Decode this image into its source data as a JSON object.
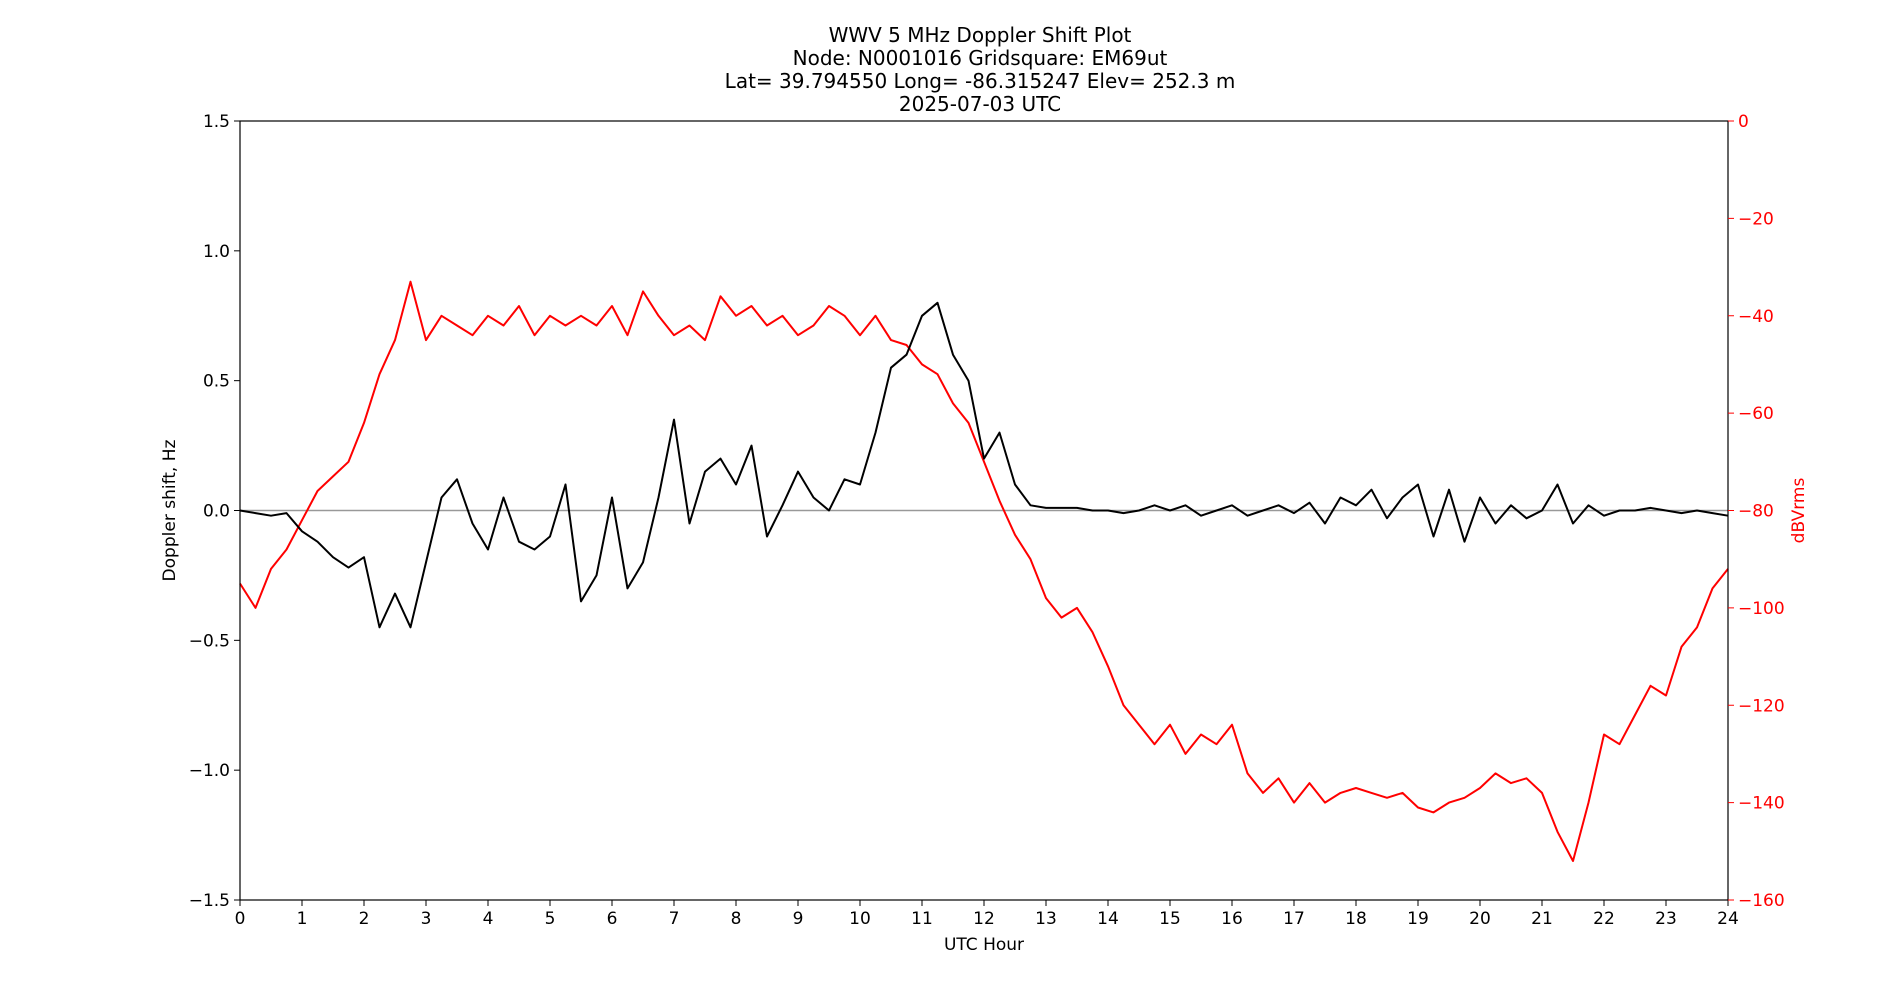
{
  "chart_data": {
    "type": "line",
    "title_lines": [
      "WWV 5 MHz Doppler Shift Plot",
      "Node:  N0001016     Gridsquare:  EM69ut",
      "Lat= 39.794550    Long= -86.315247    Elev= 252.3 m",
      "2025-07-03  UTC"
    ],
    "xlabel": "UTC Hour",
    "ylabel_left": "Doppler shift, Hz",
    "ylabel_right": "dBVrms",
    "xlim": [
      0,
      24
    ],
    "ylim_left": [
      -1.5,
      1.5
    ],
    "ylim_right": [
      -160,
      0
    ],
    "x_ticks": [
      "0",
      "1",
      "2",
      "3",
      "4",
      "5",
      "6",
      "7",
      "8",
      "9",
      "10",
      "11",
      "12",
      "13",
      "14",
      "15",
      "16",
      "17",
      "18",
      "19",
      "20",
      "21",
      "22",
      "23",
      "24"
    ],
    "y_left_ticks": [
      "1.5",
      "1.0",
      "0.5",
      "0.0",
      "−0.5",
      "−1.0",
      "−1.5"
    ],
    "y_right_ticks": [
      "0",
      "−20",
      "−40",
      "−60",
      "−80",
      "−100",
      "−120",
      "−140",
      "−160"
    ],
    "grid": false,
    "zero_line": true,
    "colors": {
      "doppler": "#000000",
      "power": "#ff0000",
      "zero_line": "#999999",
      "right_axis": "#ff0000"
    },
    "series": [
      {
        "axis": "left",
        "x": [
          0,
          0.25,
          0.5,
          0.75,
          1.0,
          1.25,
          1.5,
          1.75,
          2.0,
          2.25,
          2.5,
          2.75,
          3.0,
          3.25,
          3.5,
          3.75,
          4.0,
          4.25,
          4.5,
          4.75,
          5.0,
          5.25,
          5.5,
          5.75,
          6.0,
          6.25,
          6.5,
          6.75,
          7.0,
          7.25,
          7.5,
          7.75,
          8.0,
          8.25,
          8.5,
          8.75,
          9.0,
          9.25,
          9.5,
          9.75,
          10.0,
          10.25,
          10.5,
          10.75,
          11.0,
          11.25,
          11.5,
          11.75,
          12.0,
          12.25,
          12.5,
          12.75,
          13.0,
          13.25,
          13.5,
          13.75,
          14.0,
          14.25,
          14.5,
          14.75,
          15.0,
          15.25,
          15.5,
          15.75,
          16.0,
          16.25,
          16.5,
          16.75,
          17.0,
          17.25,
          17.5,
          17.75,
          18.0,
          18.25,
          18.5,
          18.75,
          19.0,
          19.25,
          19.5,
          19.75,
          20.0,
          20.25,
          20.5,
          20.75,
          21.0,
          21.25,
          21.5,
          21.75,
          22.0,
          22.25,
          22.5,
          22.75,
          23.0,
          23.25,
          23.5,
          23.75,
          24.0
        ],
        "values": [
          0,
          -0.01,
          -0.02,
          -0.01,
          -0.08,
          -0.12,
          -0.18,
          -0.22,
          -0.18,
          -0.45,
          -0.32,
          -0.45,
          -0.2,
          0.05,
          0.12,
          -0.05,
          -0.15,
          0.05,
          -0.12,
          -0.15,
          -0.1,
          0.1,
          -0.35,
          -0.25,
          0.05,
          -0.3,
          -0.2,
          0.05,
          0.35,
          -0.05,
          0.15,
          0.2,
          0.1,
          0.25,
          -0.1,
          0.02,
          0.15,
          0.05,
          0.0,
          0.12,
          0.1,
          0.3,
          0.55,
          0.6,
          0.75,
          0.8,
          0.6,
          0.5,
          0.2,
          0.3,
          0.1,
          0.02,
          0.01,
          0.01,
          0.01,
          0.0,
          0.0,
          -0.01,
          0.0,
          0.02,
          0.0,
          0.02,
          -0.02,
          0.0,
          0.02,
          -0.02,
          0.0,
          0.02,
          -0.01,
          0.03,
          -0.05,
          0.05,
          0.02,
          0.08,
          -0.03,
          0.05,
          0.1,
          -0.1,
          0.08,
          -0.12,
          0.05,
          -0.05,
          0.02,
          -0.03,
          0.0,
          0.1,
          -0.05,
          0.02,
          -0.02,
          0.0,
          0.0,
          0.01,
          0.0,
          -0.01,
          0.0,
          -0.01,
          -0.02
        ]
      },
      {
        "axis": "right",
        "x": [
          0,
          0.25,
          0.5,
          0.75,
          1.0,
          1.25,
          1.5,
          1.75,
          2.0,
          2.25,
          2.5,
          2.75,
          3.0,
          3.25,
          3.5,
          3.75,
          4.0,
          4.25,
          4.5,
          4.75,
          5.0,
          5.25,
          5.5,
          5.75,
          6.0,
          6.25,
          6.5,
          6.75,
          7.0,
          7.25,
          7.5,
          7.75,
          8.0,
          8.25,
          8.5,
          8.75,
          9.0,
          9.25,
          9.5,
          9.75,
          10.0,
          10.25,
          10.5,
          10.75,
          11.0,
          11.25,
          11.5,
          11.75,
          12.0,
          12.25,
          12.5,
          12.75,
          13.0,
          13.25,
          13.5,
          13.75,
          14.0,
          14.25,
          14.5,
          14.75,
          15.0,
          15.25,
          15.5,
          15.75,
          16.0,
          16.25,
          16.5,
          16.75,
          17.0,
          17.25,
          17.5,
          17.75,
          18.0,
          18.25,
          18.5,
          18.75,
          19.0,
          19.25,
          19.5,
          19.75,
          20.0,
          20.25,
          20.5,
          20.75,
          21.0,
          21.25,
          21.5,
          21.75,
          22.0,
          22.25,
          22.5,
          22.75,
          23.0,
          23.25,
          23.5,
          23.75,
          24.0
        ],
        "values": [
          -95,
          -100,
          -92,
          -88,
          -82,
          -76,
          -73,
          -70,
          -62,
          -52,
          -45,
          -33,
          -45,
          -40,
          -42,
          -44,
          -40,
          -42,
          -38,
          -44,
          -40,
          -42,
          -40,
          -42,
          -38,
          -44,
          -35,
          -40,
          -44,
          -42,
          -45,
          -36,
          -40,
          -38,
          -42,
          -40,
          -44,
          -42,
          -38,
          -40,
          -44,
          -40,
          -45,
          -46,
          -50,
          -52,
          -58,
          -62,
          -70,
          -78,
          -85,
          -90,
          -98,
          -102,
          -100,
          -105,
          -112,
          -120,
          -124,
          -128,
          -124,
          -130,
          -126,
          -128,
          -124,
          -134,
          -138,
          -135,
          -140,
          -136,
          -140,
          -138,
          -137,
          -138,
          -139,
          -138,
          -141,
          -142,
          -140,
          -139,
          -137,
          -134,
          -136,
          -135,
          -138,
          -146,
          -152,
          -140,
          -126,
          -128,
          -122,
          -116,
          -118,
          -108,
          -104,
          -96,
          -92
        ]
      }
    ]
  }
}
